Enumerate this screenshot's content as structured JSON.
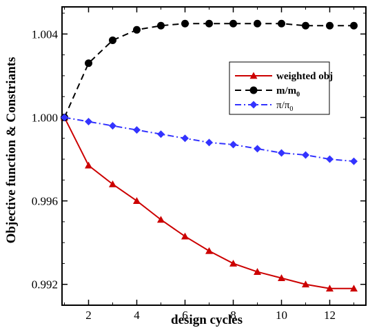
{
  "chart_data": {
    "type": "line",
    "xlabel": "design cycles",
    "ylabel": "Objective function & Constriants",
    "xlim": [
      0.9,
      13.5
    ],
    "ylim": [
      0.991,
      1.0053
    ],
    "xticks": [
      2,
      4,
      6,
      8,
      10,
      12
    ],
    "xtick_labels": [
      "2",
      "4",
      "6",
      "8",
      "10",
      "12"
    ],
    "yticks": [
      0.992,
      0.996,
      1.0,
      1.004
    ],
    "ytick_labels": [
      "0.992",
      "0.996",
      "1.000",
      "1.004"
    ],
    "grid": false,
    "legend_position": "upper-right",
    "x": [
      1,
      2,
      3,
      4,
      5,
      6,
      7,
      8,
      9,
      10,
      11,
      12,
      13
    ],
    "series": [
      {
        "name": "weighted obj",
        "color": "#cc0000",
        "line_style": "solid",
        "marker": "triangle",
        "values": [
          1.0,
          0.9977,
          0.9968,
          0.996,
          0.9951,
          0.9943,
          0.9936,
          0.993,
          0.9926,
          0.9923,
          0.992,
          0.9918,
          0.9918
        ]
      },
      {
        "name": "m/m0",
        "name_main": "m/m",
        "name_sub": "0",
        "color": "#000000",
        "line_style": "dashed",
        "marker": "circle",
        "values": [
          1.0,
          1.0026,
          1.0037,
          1.0042,
          1.0044,
          1.0045,
          1.0045,
          1.0045,
          1.0045,
          1.0045,
          1.0044,
          1.0044,
          1.0044
        ]
      },
      {
        "name": "π/π0",
        "name_main": "π/π",
        "name_sub": "0",
        "color": "#3333ff",
        "line_style": "dash-dot",
        "marker": "diamond",
        "values": [
          1.0,
          0.9998,
          0.9996,
          0.9994,
          0.9992,
          0.999,
          0.9988,
          0.9987,
          0.9985,
          0.9983,
          0.9982,
          0.998,
          0.9979
        ]
      }
    ]
  }
}
